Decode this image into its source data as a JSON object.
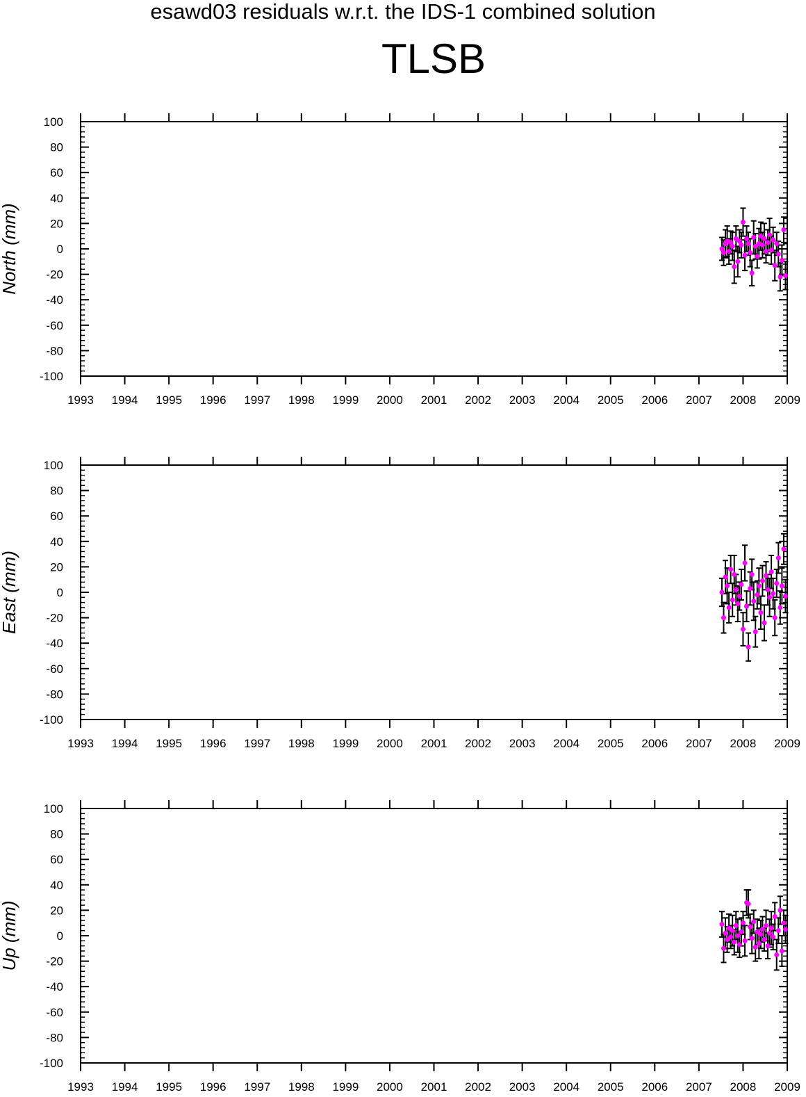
{
  "title": "esawd03 residuals w.r.t. the IDS-1 combined solution",
  "station": "TLSB",
  "colors": {
    "marker": "#ff00ff",
    "errorbar": "#000000",
    "axis": "#000000"
  },
  "x_ticks": [
    "1993",
    "1994",
    "1995",
    "1996",
    "1997",
    "1998",
    "1999",
    "2000",
    "2001",
    "2002",
    "2003",
    "2004",
    "2005",
    "2006",
    "2007",
    "2008",
    "2009"
  ],
  "y_ticks": [
    "100",
    "80",
    "60",
    "40",
    "20",
    "0",
    "-20",
    "-40",
    "-60",
    "-80",
    "-100"
  ],
  "chart_data": [
    {
      "type": "scatter",
      "title": "",
      "ylabel": "North (mm)",
      "xlabel": "",
      "xlim": [
        1993,
        2009
      ],
      "ylim": [
        -100,
        100
      ],
      "grid": false,
      "series": [
        {
          "x": [
            2007.52,
            2007.56,
            2007.6,
            2007.64,
            2007.68,
            2007.72,
            2007.76,
            2007.8,
            2007.84,
            2007.88,
            2007.92,
            2007.96,
            2008.0,
            2008.04,
            2008.08,
            2008.12,
            2008.16,
            2008.2,
            2008.24,
            2008.28,
            2008.32,
            2008.36,
            2008.4,
            2008.44,
            2008.48,
            2008.52,
            2008.56,
            2008.6,
            2008.64,
            2008.68,
            2008.72,
            2008.76,
            2008.8,
            2008.84,
            2008.88,
            2008.92,
            2008.96
          ],
          "y": [
            0,
            -3,
            4,
            6,
            -2,
            5,
            2,
            -14,
            8,
            -10,
            6,
            3,
            21,
            -5,
            8,
            4,
            -3,
            -19,
            9,
            2,
            -6,
            4,
            10,
            3,
            8,
            -2,
            5,
            11,
            -1,
            7,
            -13,
            4,
            -4,
            -22,
            -9,
            15,
            -21
          ],
          "err": [
            9,
            10,
            11,
            12,
            10,
            9,
            11,
            13,
            10,
            12,
            9,
            10,
            11,
            12,
            10,
            9,
            11,
            10,
            13,
            10,
            9,
            12,
            11,
            10,
            12,
            9,
            10,
            13,
            11,
            10,
            12,
            9,
            10,
            11,
            12,
            10,
            11
          ]
        }
      ]
    },
    {
      "type": "scatter",
      "title": "",
      "ylabel": "East (mm)",
      "xlabel": "",
      "xlim": [
        1993,
        2009
      ],
      "ylim": [
        -100,
        100
      ],
      "grid": false,
      "series": [
        {
          "x": [
            2007.52,
            2007.56,
            2007.6,
            2007.64,
            2007.68,
            2007.72,
            2007.76,
            2007.8,
            2007.84,
            2007.88,
            2007.92,
            2007.96,
            2008.0,
            2008.04,
            2008.08,
            2008.12,
            2008.16,
            2008.2,
            2008.24,
            2008.28,
            2008.32,
            2008.36,
            2008.4,
            2008.44,
            2008.48,
            2008.52,
            2008.56,
            2008.6,
            2008.64,
            2008.68,
            2008.72,
            2008.76,
            2008.8,
            2008.84,
            2008.88,
            2008.92,
            2008.96
          ],
          "y": [
            0,
            -20,
            12,
            5,
            -12,
            18,
            -6,
            14,
            2,
            -9,
            -3,
            6,
            -29,
            23,
            -11,
            -43,
            3,
            14,
            -7,
            -31,
            -2,
            5,
            -16,
            9,
            -24,
            13,
            2,
            -4,
            16,
            -1,
            -20,
            7,
            27,
            -12,
            5,
            34,
            -3
          ],
          "err": [
            11,
            12,
            13,
            14,
            12,
            11,
            13,
            15,
            12,
            14,
            11,
            12,
            13,
            14,
            12,
            11,
            13,
            12,
            15,
            12,
            11,
            14,
            13,
            12,
            14,
            11,
            12,
            15,
            13,
            12,
            14,
            11,
            12,
            13,
            14,
            12,
            13
          ]
        }
      ]
    },
    {
      "type": "scatter",
      "title": "",
      "ylabel": "Up (mm)",
      "xlabel": "",
      "xlim": [
        1993,
        2009
      ],
      "ylim": [
        -100,
        100
      ],
      "grid": false,
      "series": [
        {
          "x": [
            2007.52,
            2007.56,
            2007.6,
            2007.64,
            2007.68,
            2007.72,
            2007.76,
            2007.8,
            2007.84,
            2007.88,
            2007.92,
            2007.96,
            2008.0,
            2008.04,
            2008.08,
            2008.12,
            2008.16,
            2008.2,
            2008.24,
            2008.28,
            2008.32,
            2008.36,
            2008.4,
            2008.44,
            2008.48,
            2008.52,
            2008.56,
            2008.6,
            2008.64,
            2008.68,
            2008.72,
            2008.76,
            2008.8,
            2008.84,
            2008.88,
            2008.92,
            2008.96
          ],
          "y": [
            9,
            -10,
            2,
            -3,
            6,
            -1,
            4,
            -5,
            8,
            0,
            -7,
            3,
            10,
            -4,
            26,
            25,
            7,
            -2,
            11,
            -9,
            3,
            -6,
            1,
            5,
            -3,
            8,
            -8,
            2,
            6,
            -1,
            15,
            -15,
            4,
            20,
            -12,
            10,
            5
          ],
          "err": [
            10,
            11,
            12,
            10,
            11,
            9,
            12,
            10,
            11,
            13,
            10,
            11,
            9,
            12,
            10,
            11,
            10,
            12,
            9,
            11,
            10,
            12,
            11,
            10,
            9,
            12,
            10,
            11,
            13,
            10,
            11,
            12,
            10,
            11,
            12,
            10,
            11
          ]
        }
      ]
    }
  ]
}
